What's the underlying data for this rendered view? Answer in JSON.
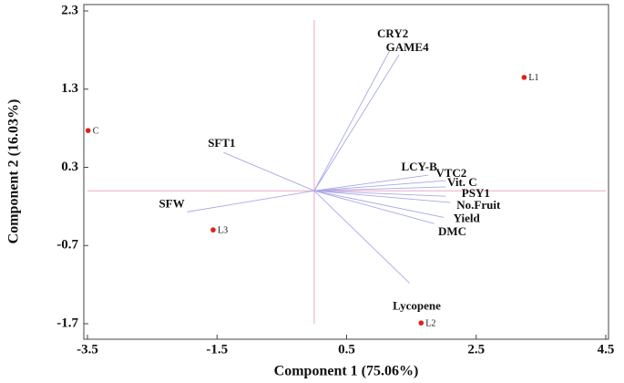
{
  "chart_data": {
    "type": "biplot",
    "xlabel": "Component 1 (75.06%)",
    "ylabel": "Component 2 (16.03%)",
    "xlim": [
      -3.5,
      4.5
    ],
    "xticks": [
      -3.5,
      -1.5,
      0.5,
      2.5,
      4.5
    ],
    "ylim": [
      -1.7,
      2.3
    ],
    "yticks": [
      -1.7,
      -0.7,
      0.3,
      1.3,
      2.3
    ],
    "points": {
      "color": "#e0201c",
      "labels": [
        "C",
        "L1",
        "L2",
        "L3"
      ],
      "x": [
        -3.49,
        3.24,
        1.65,
        -1.56
      ],
      "y": [
        0.77,
        1.45,
        -1.69,
        -0.5
      ]
    },
    "loadings": {
      "color": "#a8a8e8",
      "labels": [
        "CRY2",
        "GAME4",
        "SFT1",
        "SFW",
        "LCY-B",
        "VTC2",
        "Vit. C",
        "PSY1",
        "No.Fruit",
        "Yield",
        "DMC",
        "Lycopene"
      ],
      "x": [
        1.17,
        1.31,
        -1.4,
        -1.96,
        1.76,
        2.03,
        2.03,
        2.03,
        2.1,
        2.0,
        1.85,
        1.47
      ],
      "y": [
        1.8,
        1.74,
        0.49,
        -0.27,
        0.2,
        0.13,
        0.05,
        -0.07,
        -0.15,
        -0.34,
        -0.42,
        -1.18
      ]
    }
  }
}
